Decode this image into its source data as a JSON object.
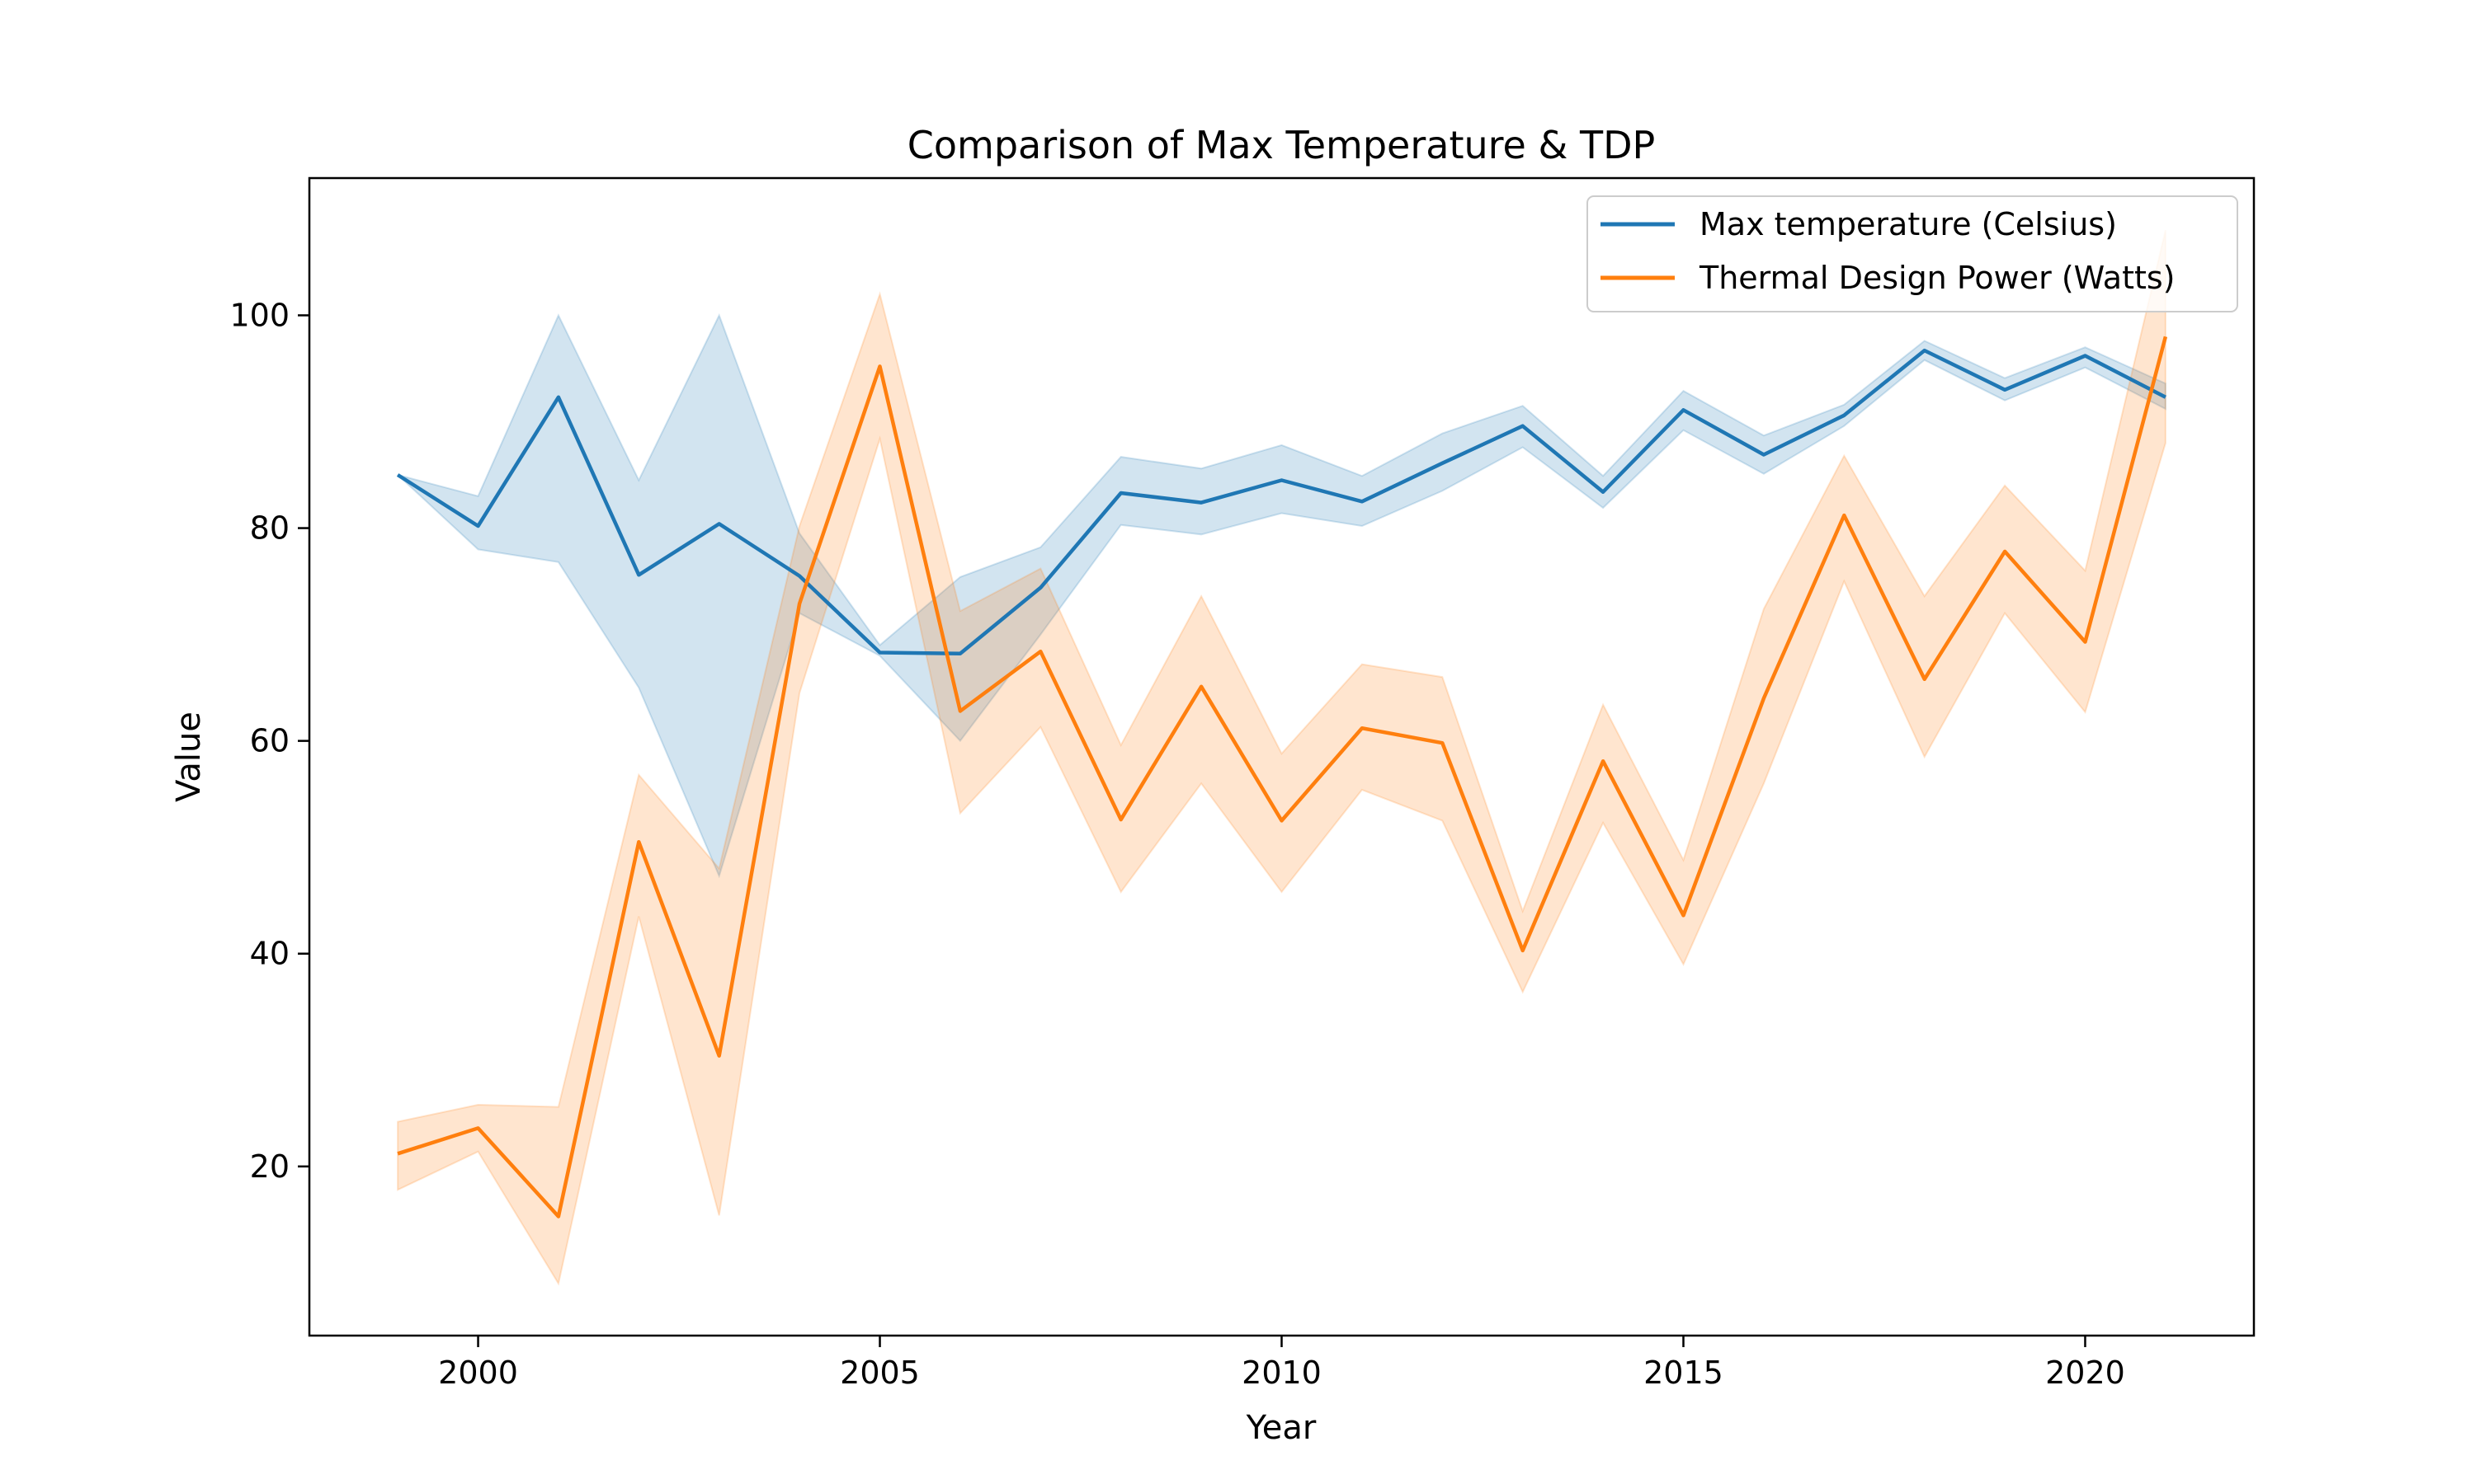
{
  "chart_data": {
    "type": "line",
    "title": "Comparison of Max Temperature & TDP",
    "xlabel": "Year",
    "ylabel": "Value",
    "xlim": [
      1997.9,
      2022.1
    ],
    "ylim": [
      4.1,
      112.9
    ],
    "xticks": [
      2000,
      2005,
      2010,
      2015,
      2020
    ],
    "yticks": [
      20,
      40,
      60,
      80,
      100
    ],
    "grid": false,
    "legend_position": "top-right",
    "x": [
      1999,
      2000,
      2001,
      2002,
      2003,
      2004,
      2005,
      2006,
      2007,
      2008,
      2009,
      2010,
      2011,
      2012,
      2013,
      2014,
      2015,
      2016,
      2017,
      2018,
      2019,
      2020,
      2021
    ],
    "series": [
      {
        "name": "Max temperature (Celsius)",
        "color": "#1f77b4",
        "band_color": "#1f77b4",
        "values": [
          85.0,
          80.2,
          92.3,
          75.6,
          80.4,
          75.5,
          68.3,
          68.2,
          74.4,
          83.3,
          82.4,
          84.5,
          82.5,
          86.1,
          89.6,
          83.4,
          91.1,
          86.9,
          90.6,
          96.7,
          93.0,
          96.2,
          92.3
        ],
        "ci_low": [
          85.0,
          78.0,
          76.8,
          65.0,
          47.3,
          72.0,
          68.0,
          60.0,
          70.0,
          80.3,
          79.4,
          81.4,
          80.2,
          83.5,
          87.6,
          81.9,
          89.2,
          85.1,
          89.6,
          95.8,
          92.0,
          95.1,
          91.2
        ],
        "ci_high": [
          85.0,
          83.0,
          100.0,
          84.5,
          100.0,
          79.5,
          69.0,
          75.4,
          78.2,
          86.7,
          85.6,
          87.8,
          84.9,
          88.9,
          91.5,
          84.9,
          92.9,
          88.7,
          91.6,
          97.6,
          94.1,
          97.0,
          93.6
        ]
      },
      {
        "name": "Thermal Design Power (Watts)",
        "color": "#ff7f0e",
        "band_color": "#ff7f0e",
        "values": [
          21.2,
          23.6,
          15.3,
          50.5,
          30.4,
          72.9,
          95.2,
          62.8,
          68.4,
          52.6,
          65.1,
          52.5,
          61.2,
          59.8,
          40.3,
          58.1,
          43.6,
          64.0,
          81.2,
          65.8,
          77.8,
          69.3,
          98.0
        ],
        "ci_low": [
          17.8,
          21.4,
          9.0,
          43.5,
          15.4,
          64.5,
          88.4,
          53.2,
          61.3,
          45.8,
          56.0,
          45.8,
          55.4,
          52.5,
          36.4,
          52.3,
          39.0,
          56.0,
          75.0,
          58.5,
          72.0,
          62.7,
          88.0
        ],
        "ci_high": [
          24.2,
          25.8,
          25.6,
          56.8,
          48.0,
          80.2,
          102.0,
          72.2,
          76.2,
          59.6,
          73.6,
          58.8,
          67.2,
          66.0,
          44.0,
          63.4,
          48.8,
          72.4,
          86.8,
          73.6,
          84.0,
          76.0,
          108.0
        ]
      }
    ]
  }
}
